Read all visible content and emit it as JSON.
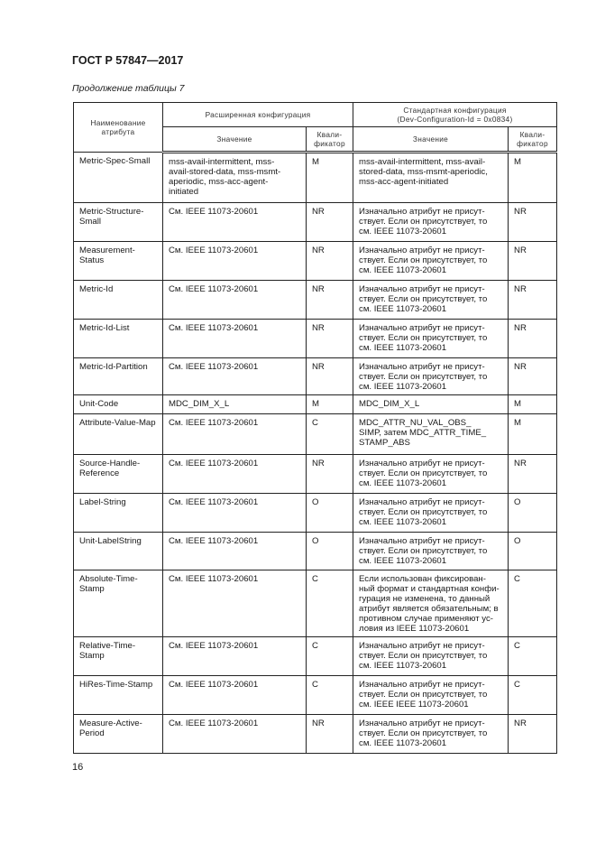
{
  "header": {
    "doc_code": "ГОСТ Р 57847—2017",
    "caption": "Продолжение таблицы 7"
  },
  "table": {
    "headers": {
      "attr_name": "Наименование\nатрибута",
      "extended": "Расширенная конфигурация",
      "standard": "Стандартная конфигурация\n(Dev-Configuration-Id = 0x0834)",
      "value": "Значение",
      "qualifier": "Квали-\nфикатор",
      "value2": "Значение",
      "qualifier2": "Квали-\nфикатор"
    },
    "rows": [
      {
        "name": "Metric-Spec-Small",
        "ext_value": "mss-avail-intermittent, mss-\navail-stored-data, mss-msmt-\naperiodic, mss-acc-agent-\ninitiated",
        "ext_q": "M",
        "std_value": "mss-avail-intermittent, mss-avail-\nstored-data, mss-msmt-aperiodic,\nmss-acc-agent-initiated",
        "std_q": "M"
      },
      {
        "name": "Metric-Structure-\nSmall",
        "ext_value": "См. IEEE 11073-20601",
        "ext_q": "NR",
        "std_value": "Изначально атрибут не присут-\nствует. Если он присутствует, то\nсм. IEEE 11073-20601",
        "std_q": "NR"
      },
      {
        "name": "Measurement-\nStatus",
        "ext_value": "См. IEEE 11073-20601",
        "ext_q": "NR",
        "std_value": "Изначально атрибут не присут-\nствует. Если он присутствует, то\nсм. IEEE 11073-20601",
        "std_q": "NR"
      },
      {
        "name": "Metric-Id",
        "ext_value": "См. IEEE 11073-20601",
        "ext_q": "NR",
        "std_value": "Изначально атрибут не присут-\nствует. Если он присутствует, то\nсм. IEEE 11073-20601",
        "std_q": "NR"
      },
      {
        "name": "Metric-Id-List",
        "ext_value": "См. IEEE 11073-20601",
        "ext_q": "NR",
        "std_value": "Изначально атрибут не присут-\nствует. Если он присутствует, то\nсм. IEEE 11073-20601",
        "std_q": "NR"
      },
      {
        "name": "Metric-Id-Partition",
        "ext_value": "См. IEEE 11073-20601",
        "ext_q": "NR",
        "std_value": "Изначально атрибут не присут-\nствует. Если он присутствует, то\nсм. IEEE 11073-20601",
        "std_q": "NR"
      },
      {
        "name": "Unit-Code",
        "ext_value": "MDC_DIM_X_L",
        "ext_q": "M",
        "std_value": "MDC_DIM_X_L",
        "std_q": "M"
      },
      {
        "name": "Attribute-Value-Map",
        "ext_value": "См. IEEE 11073-20601",
        "ext_q": "C",
        "std_value": "MDC_ATTR_NU_VAL_OBS_\nSIMP, затем MDC_ATTR_TIME_\nSTAMP_ABS",
        "std_q": "M"
      },
      {
        "name": "Source-Handle-\nReference",
        "ext_value": "См. IEEE 11073-20601",
        "ext_q": "NR",
        "std_value": "Изначально атрибут не присут-\nствует. Если он присутствует, то\nсм. IEEE 11073-20601",
        "std_q": "NR"
      },
      {
        "name": "Label-String",
        "ext_value": "См. IEEE 11073-20601",
        "ext_q": "O",
        "std_value": "Изначально атрибут не присут-\nствует. Если он присутствует, то\nсм. IEEE 11073-20601",
        "std_q": "O"
      },
      {
        "name": "Unit-LabelString",
        "ext_value": "См. IEEE 11073-20601",
        "ext_q": "O",
        "std_value": "Изначально атрибут не присут-\nствует. Если он присутствует, то\nсм. IEEE 11073-20601",
        "std_q": "O"
      },
      {
        "name": "Absolute-Time-\nStamp",
        "ext_value": "См. IEEE 11073-20601",
        "ext_q": "C",
        "std_value": "Если использован фиксирован-\nный формат и стандартная конфи-\nгурация не изменена, то данный\nатрибут является обязательным; в\nпротивном случае применяют ус-\nловия из IEEE 11073-20601",
        "std_q": "C"
      },
      {
        "name": "Relative-Time-\nStamp",
        "ext_value": "См. IEEE 11073-20601",
        "ext_q": "C",
        "std_value": "Изначально атрибут не присут-\nствует. Если он присутствует, то\nсм. IEEE 11073-20601",
        "std_q": "C"
      },
      {
        "name": "HiRes-Time-Stamp",
        "ext_value": "См. IEEE 11073-20601",
        "ext_q": "C",
        "std_value": "Изначально атрибут не присут-\nствует. Если он присутствует, то\nсм. IEEE IEEE 11073-20601",
        "std_q": "C"
      },
      {
        "name": "Measure-Active-\nPeriod",
        "ext_value": "См. IEEE 11073-20601",
        "ext_q": "NR",
        "std_value": "Изначально атрибут не присут-\nствует. Если он присутствует, то\nсм. IEEE 11073-20601",
        "std_q": "NR"
      }
    ]
  },
  "footer": {
    "page_number": "16"
  }
}
